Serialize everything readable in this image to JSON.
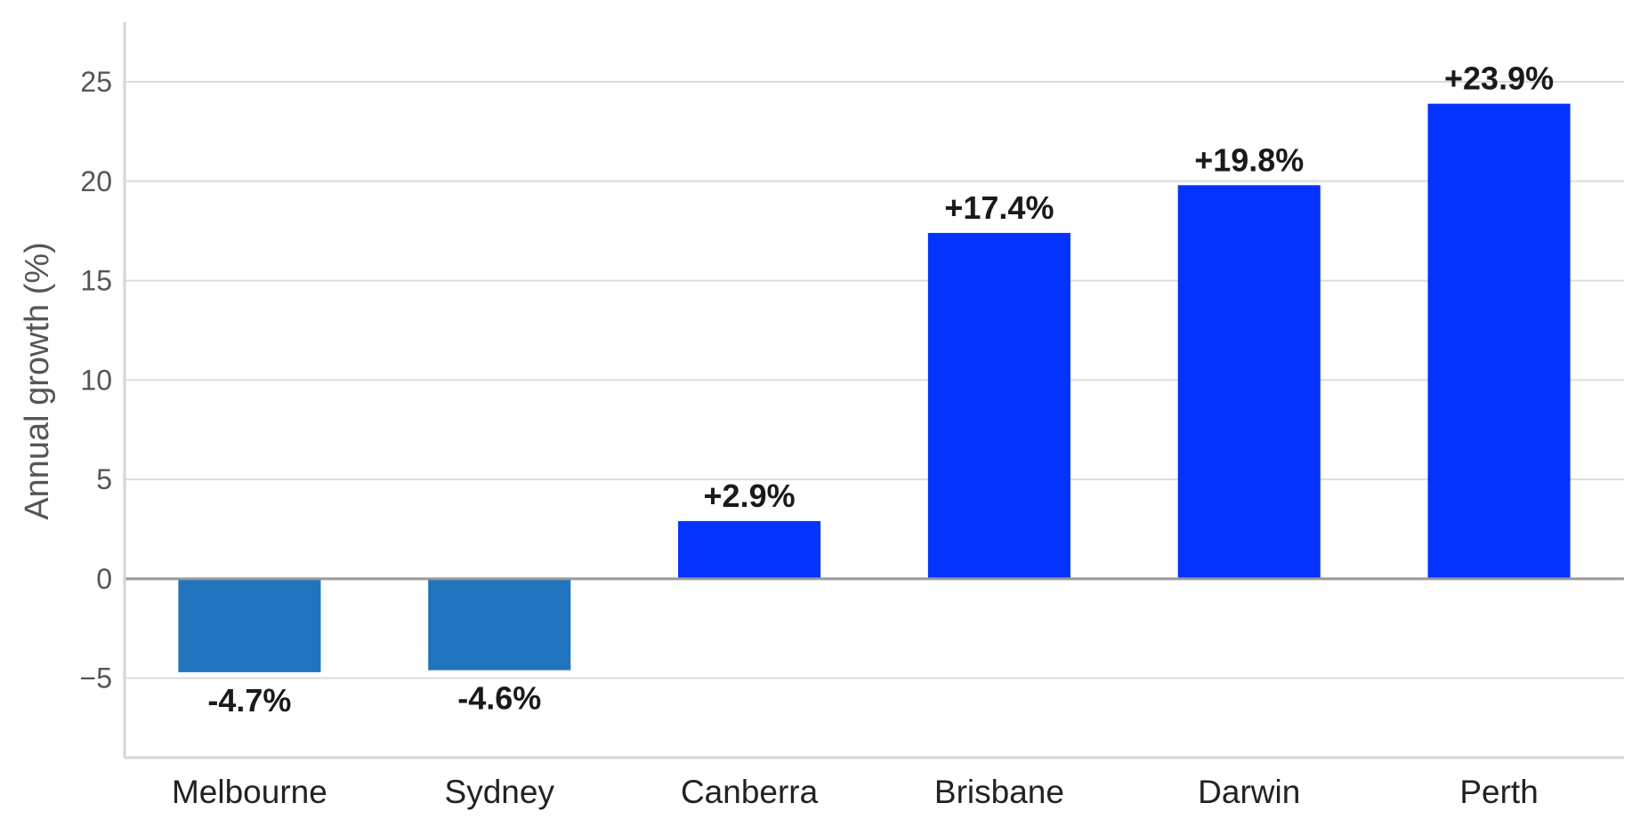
{
  "chart_data": {
    "type": "bar",
    "title": "",
    "xlabel": "",
    "ylabel": "Annual growth (%)",
    "categories": [
      "Melbourne",
      "Sydney",
      "Canberra",
      "Brisbane",
      "Darwin",
      "Perth"
    ],
    "values": [
      -4.7,
      -4.6,
      2.9,
      17.4,
      19.8,
      23.9
    ],
    "data_labels": [
      "-4.7%",
      "-4.6%",
      "+2.9%",
      "+17.4%",
      "+19.8%",
      "+23.9%"
    ],
    "ylim": [
      -9,
      28
    ],
    "yticks": [
      -5,
      0,
      5,
      10,
      15,
      20,
      25
    ],
    "ytick_labels": [
      "−5",
      "0",
      "5",
      "10",
      "15",
      "20",
      "25"
    ],
    "grid": "horizontal",
    "colors": {
      "positive": "#0433ff",
      "negative": "#1f74bd",
      "grid": "#dcdcdc",
      "zero_line": "#999999",
      "axis": "#d6d6d6"
    }
  }
}
